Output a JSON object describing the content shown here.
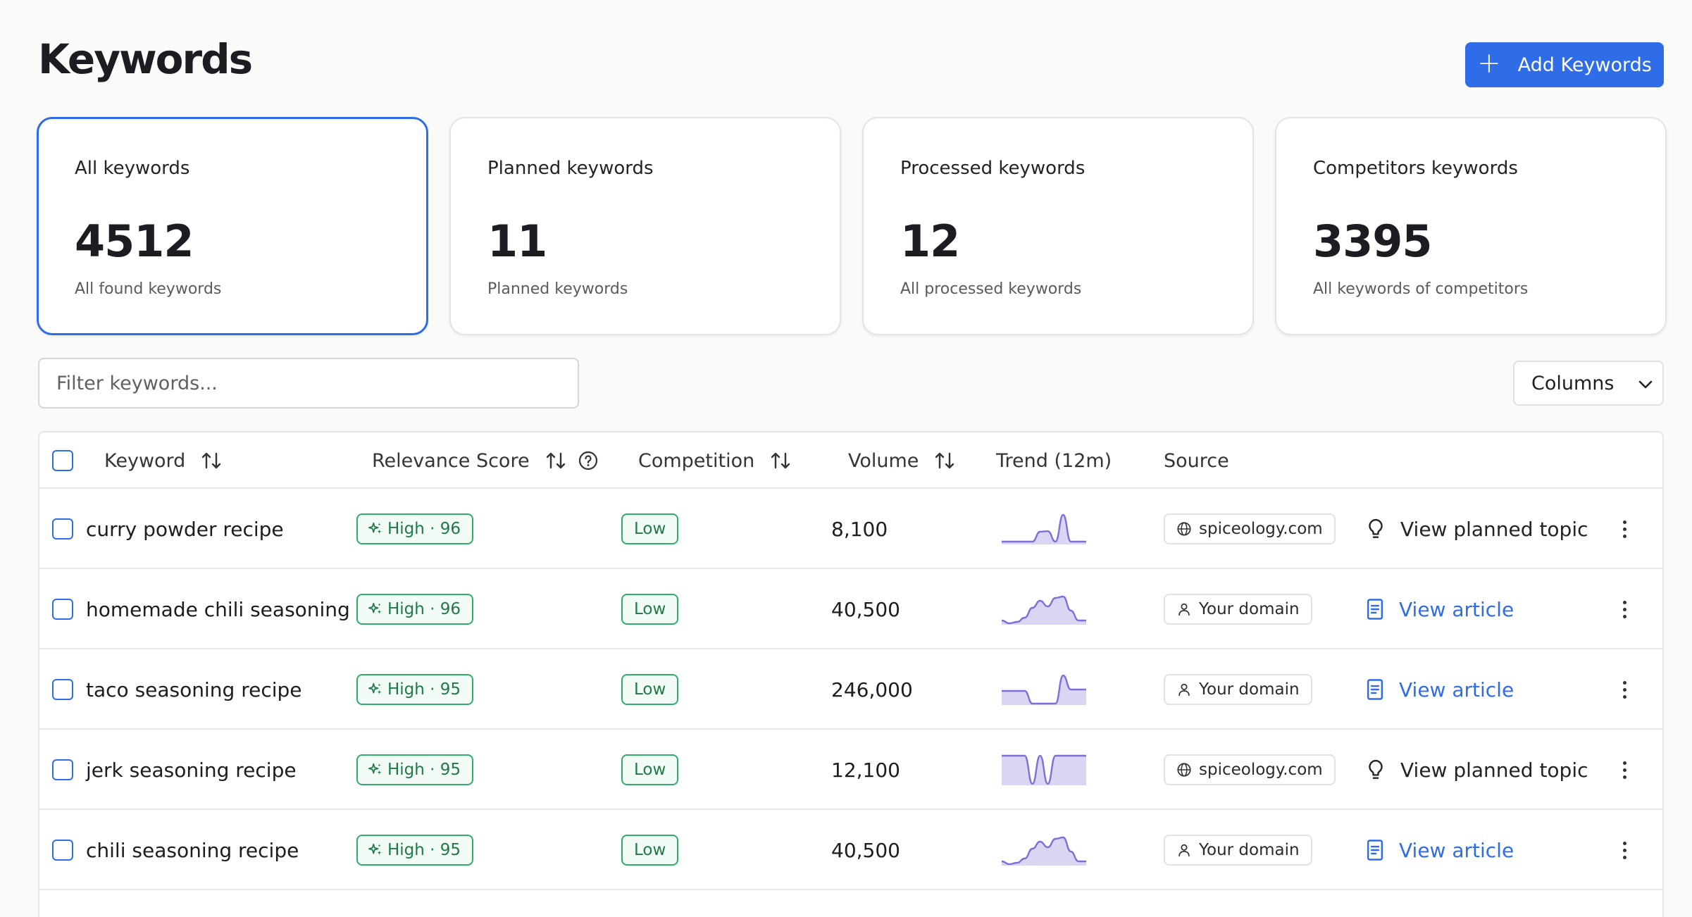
{
  "page": {
    "title": "Keywords"
  },
  "header": {
    "add_button_label": "Add Keywords",
    "add_icon": "plus-icon",
    "accent_color": "#2f6ce8"
  },
  "cards": [
    {
      "title": "All keywords",
      "value": "4512",
      "subtitle": "All found keywords",
      "active": true
    },
    {
      "title": "Planned keywords",
      "value": "11",
      "subtitle": "Planned keywords",
      "active": false
    },
    {
      "title": "Processed keywords",
      "value": "12",
      "subtitle": "All processed keywords",
      "active": false
    },
    {
      "title": "Competitors keywords",
      "value": "3395",
      "subtitle": "All keywords of competitors",
      "active": false
    }
  ],
  "filter": {
    "placeholder": "Filter keywords...",
    "value": ""
  },
  "columns_button": {
    "label": "Columns",
    "icon": "chevron-down-icon"
  },
  "table": {
    "headers": {
      "keyword": "Keyword",
      "relevance": "Relevance Score",
      "competition": "Competition",
      "volume": "Volume",
      "trend": "Trend (12m)",
      "source": "Source"
    },
    "rows": [
      {
        "keyword": "curry powder recipe",
        "relevance": "High · 96",
        "competition": "Low",
        "volume": "8,100",
        "trend": [
          0.05,
          0.05,
          0.05,
          0.05,
          0.05,
          0.4,
          0.42,
          0.05,
          1.0,
          0.05,
          0.05,
          0.05
        ],
        "source": "spiceology.com",
        "source_icon": "globe-icon",
        "action": "View planned topic",
        "action_icon": "lightbulb-icon",
        "action_type": "planned"
      },
      {
        "keyword": "homemade chili seasoning",
        "relevance": "High · 96",
        "competition": "Low",
        "volume": "40,500",
        "trend": [
          0.1,
          0.0,
          0.05,
          0.2,
          0.55,
          0.8,
          0.6,
          0.9,
          0.95,
          0.45,
          0.1,
          0.1
        ],
        "source": "Your domain",
        "source_icon": "user-icon",
        "action": "View article",
        "action_icon": "document-icon",
        "action_type": "article"
      },
      {
        "keyword": "taco seasoning recipe",
        "relevance": "High · 95",
        "competition": "Low",
        "volume": "246,000",
        "trend": [
          0.45,
          0.45,
          0.45,
          0.45,
          0.0,
          0.0,
          0.0,
          0.0,
          1.0,
          0.5,
          0.5,
          0.5
        ],
        "source": "Your domain",
        "source_icon": "user-icon",
        "action": "View article",
        "action_icon": "document-icon",
        "action_type": "article"
      },
      {
        "keyword": "jerk seasoning recipe",
        "relevance": "High · 95",
        "competition": "Low",
        "volume": "12,100",
        "trend": [
          1.0,
          1.0,
          1.0,
          1.0,
          0.0,
          1.0,
          0.0,
          1.0,
          1.0,
          1.0,
          1.0,
          1.0
        ],
        "source": "spiceology.com",
        "source_icon": "globe-icon",
        "action": "View planned topic",
        "action_icon": "lightbulb-icon",
        "action_type": "planned"
      },
      {
        "keyword": "chili seasoning recipe",
        "relevance": "High · 95",
        "competition": "Low",
        "volume": "40,500",
        "trend": [
          0.1,
          0.0,
          0.05,
          0.2,
          0.55,
          0.8,
          0.6,
          0.9,
          0.95,
          0.45,
          0.1,
          0.1
        ],
        "source": "Your domain",
        "source_icon": "user-icon",
        "action": "View article",
        "action_icon": "document-icon",
        "action_type": "article"
      }
    ]
  },
  "colors": {
    "badge_green": "#2fae6a",
    "trend_stroke": "#7c70d8",
    "trend_fill": "#d9d6f4"
  }
}
